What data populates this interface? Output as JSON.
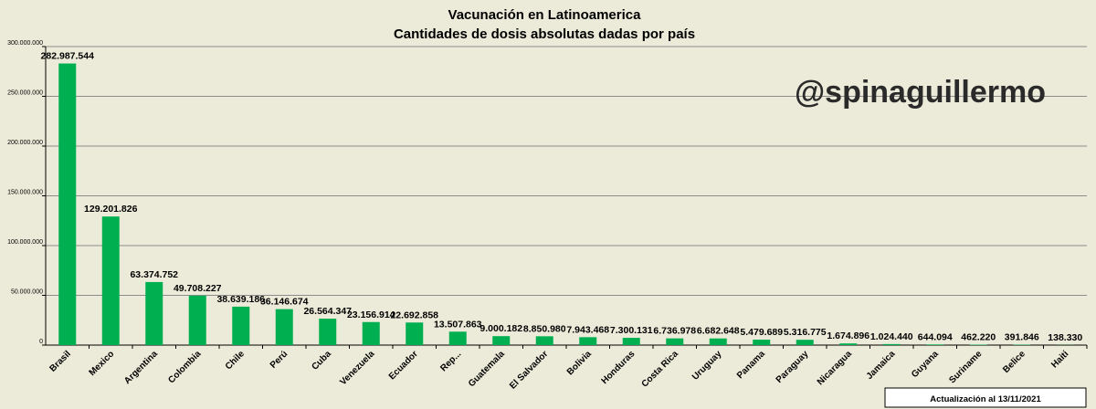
{
  "chart_data": {
    "type": "bar",
    "title": "Vacunación en Latinoamerica",
    "subtitle": "Cantidades de dosis absolutas dadas por país",
    "categories": [
      "Brasil",
      "Mexico",
      "Argentina",
      "Colombia",
      "Chile",
      "Perú",
      "Cuba",
      "Venezuela",
      "Ecuador",
      "Rep...",
      "Guatemala",
      "El Salvador",
      "Bolivia",
      "Honduras",
      "Costa Rica",
      "Uruguay",
      "Panama",
      "Paraguay",
      "Nicaragua",
      "Jamaica",
      "Guyana",
      "Suriname",
      "Belice",
      "Haiti"
    ],
    "values": [
      282987544,
      129201826,
      63374752,
      49708227,
      38639186,
      36146674,
      26564347,
      23156914,
      22692858,
      13507863,
      9000182,
      8850980,
      7943468,
      7300131,
      6736978,
      6682648,
      5479689,
      5316775,
      1674896,
      1024440,
      644094,
      462220,
      391846,
      138330
    ],
    "data_labels": [
      "282.987.544",
      "129.201.826",
      "63.374.752",
      "49.708.227",
      "38.639.186",
      "36.146.674",
      "26.564.347",
      "23.156.914",
      "22.692.858",
      "13.507.863",
      "9.000.182",
      "8.850.980",
      "7.943.468",
      "7.300.131",
      "6.736.978",
      "6.682.648",
      "5.479.689",
      "5.316.775",
      "1.674.896",
      "1.024.440",
      "644.094",
      "462.220",
      "391.846",
      "138.330"
    ],
    "y_ticks": [
      0,
      50000000,
      100000000,
      150000000,
      200000000,
      250000000,
      300000000
    ],
    "y_tick_labels": [
      "0",
      "50.000.000",
      "100.000.000",
      "150.000.000",
      "200.000.000",
      "250.000.000",
      "300.000.000"
    ],
    "ylim": [
      0,
      300000000
    ],
    "xlabel": "",
    "ylabel": "",
    "grid": true,
    "bar_color": "#00b050"
  },
  "watermark": "@spinaguillermo",
  "update_note": "Actualización al 13/11/2021"
}
